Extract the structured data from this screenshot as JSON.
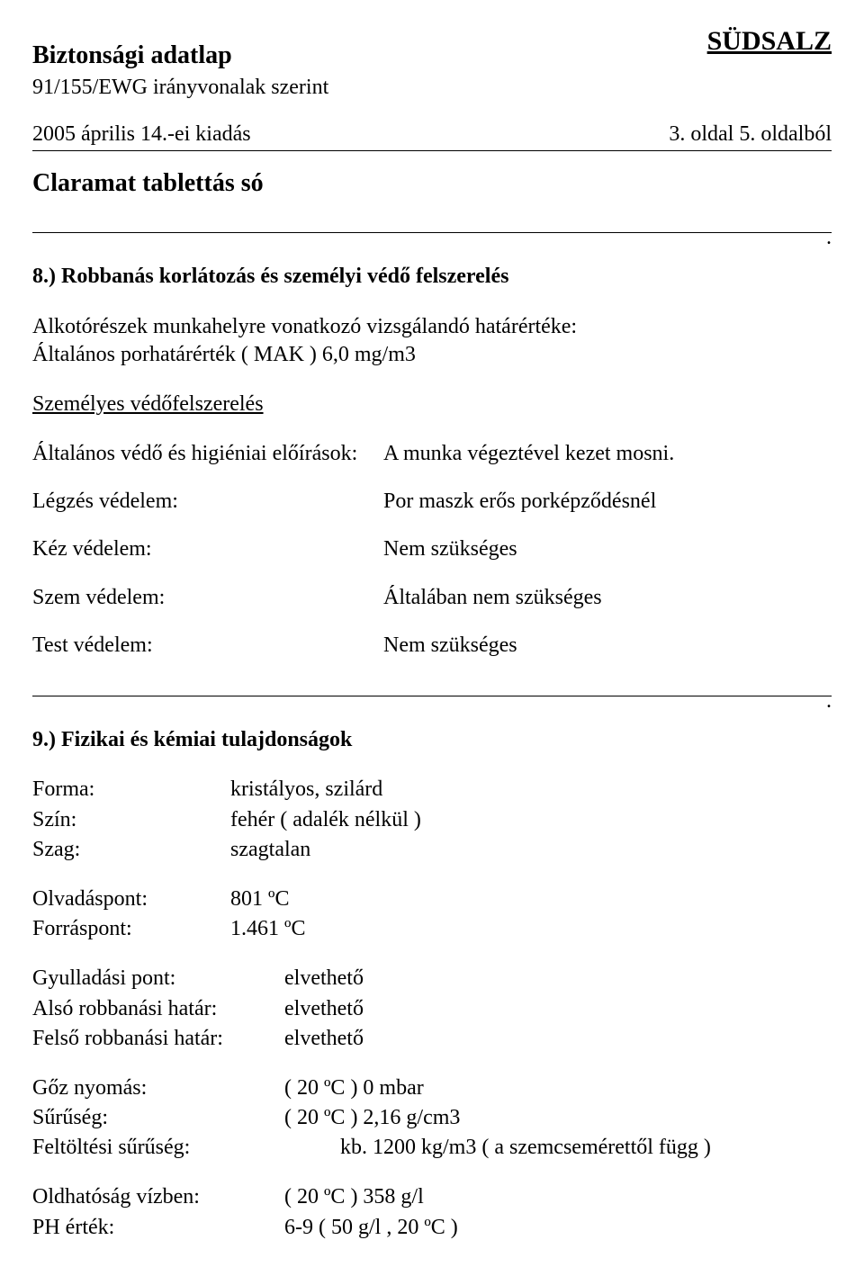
{
  "header": {
    "brand": "SÜDSALZ",
    "doc_title": "Biztonsági adatlap",
    "doc_subtitle": "91/155/EWG irányvonalak szerint",
    "issue_date": "2005 április 14.-ei kiadás",
    "page_info": "3. oldal 5. oldalból",
    "product_name": "Claramat tablettás só"
  },
  "section8": {
    "heading": "8.) Robbanás korlátozás és személyi védő felszerelés",
    "para1_line1": "Alkotórészek munkahelyre vonatkozó vizsgálandó határértéke:",
    "para1_line2": "Általános porhatárérték ( MAK ) 6,0 mg/m3",
    "ppe_heading": "Személyes védőfelszerelés",
    "rows": [
      {
        "label": "Általános védő és higiéniai előírások:",
        "value": "A munka végeztével kezet mosni."
      },
      {
        "label": "Légzés védelem:",
        "value": "Por maszk erős porképződésnél"
      },
      {
        "label": "Kéz védelem:",
        "value": "Nem szükséges"
      },
      {
        "label": "Szem védelem:",
        "value": "Általában nem szükséges"
      },
      {
        "label": "Test védelem:",
        "value": " Nem szükséges"
      }
    ]
  },
  "section9": {
    "heading": "9.) Fizikai és kémiai tulajdonságok",
    "group_a": [
      {
        "label": "Forma:",
        "value": "kristályos, szilárd"
      },
      {
        "label": "Szín:",
        "value": "fehér ( adalék nélkül )"
      },
      {
        "label": "Szag:",
        "value": "szagtalan"
      }
    ],
    "group_b": [
      {
        "label": "Olvadáspont:",
        "value": "801 ºC"
      },
      {
        "label": "Forráspont:",
        "value": "1.461 ºC"
      }
    ],
    "group_c": [
      {
        "label": "Gyulladási pont:",
        "value": "elvethető"
      },
      {
        "label": "Alsó robbanási határ:",
        "value": "elvethető"
      },
      {
        "label": "Felső robbanási határ:",
        "value": "elvethető"
      }
    ],
    "group_d": [
      {
        "label": "Gőz nyomás:",
        "value": "( 20 ºC )  0 mbar",
        "indent": false
      },
      {
        "label": "Sűrűség:",
        "value": "( 20 ºC )  2,16 g/cm3",
        "indent": false
      },
      {
        "label": "Feltöltési sűrűség:",
        "value": "kb. 1200 kg/m3 ( a szemcsemérettől függ )",
        "indent": true
      }
    ],
    "group_e": [
      {
        "label": "Oldhatóság vízben:",
        "value": "( 20 ºC )  358 g/l"
      },
      {
        "label": "PH érték:",
        "value": "6-9 ( 50 g/l , 20 ºC )"
      }
    ]
  },
  "misc": {
    "dot": "."
  }
}
